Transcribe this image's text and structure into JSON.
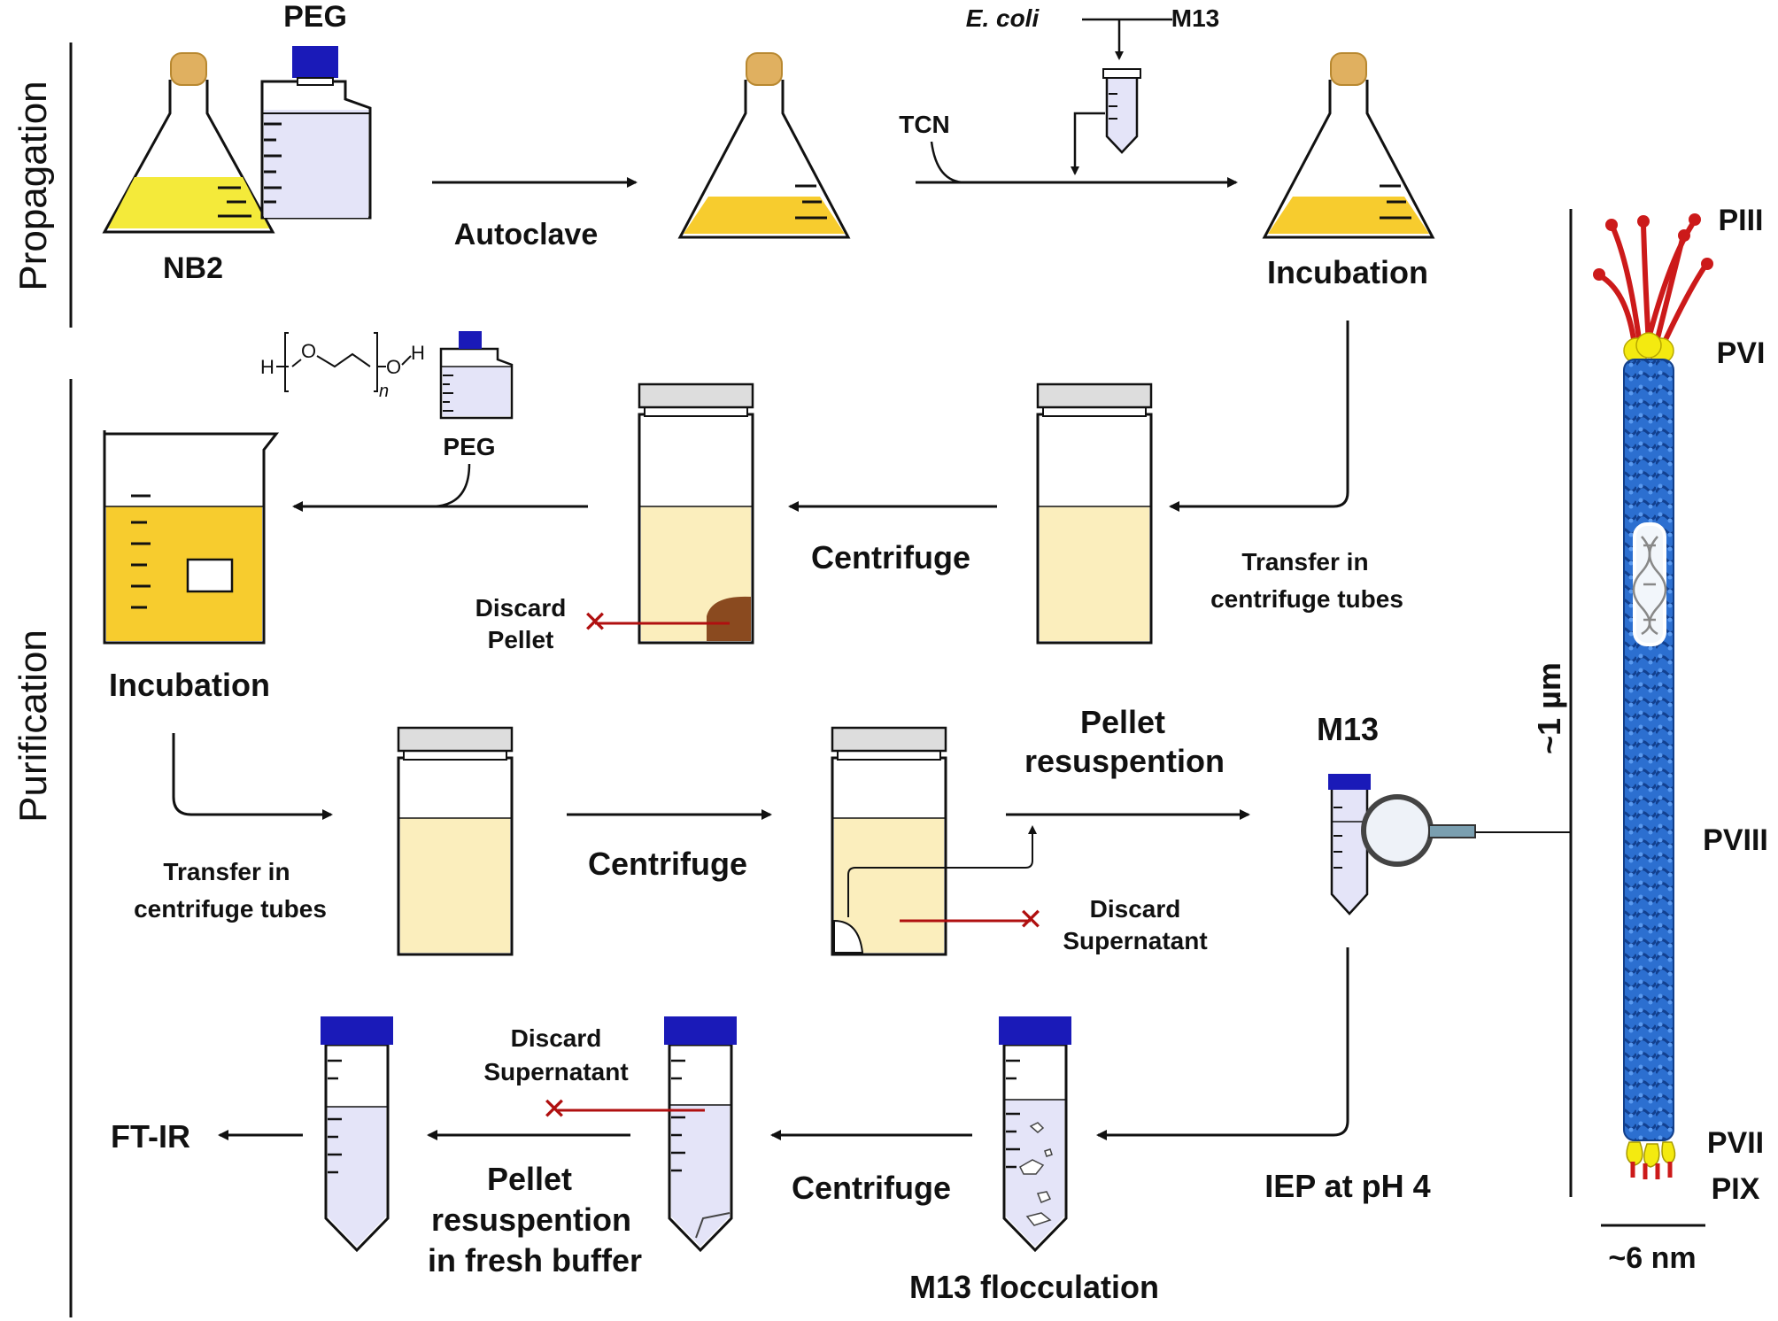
{
  "sections": {
    "propagation": "Propagation",
    "purification": "Purification"
  },
  "labels": {
    "nb2": "NB2",
    "peg_bottle": "PEG",
    "autoclave": "Autoclave",
    "ecoli": "E. coli",
    "m13_top": "M13",
    "tcn": "TCN",
    "incubation_top": "Incubation",
    "peg_small": "PEG",
    "peg_formula_h1": "H",
    "peg_formula_o1": "O",
    "peg_formula_o2": "O",
    "peg_formula_h2": "H",
    "peg_formula_n": "n",
    "centrifuge_1": "Centrifuge",
    "transfer_1a": "Transfer in",
    "transfer_1b": "centrifuge tubes",
    "discard_pellet_a": "Discard",
    "discard_pellet_b": "Pellet",
    "incubation_mid": "Incubation",
    "transfer_2a": "Transfer in",
    "transfer_2b": "centrifuge tubes",
    "centrifuge_2": "Centrifuge",
    "pellet_resusp_a": "Pellet",
    "pellet_resusp_b": "resuspention",
    "discard_super_1a": "Discard",
    "discard_super_1b": "Supernatant",
    "m13_mid": "M13",
    "iep": "IEP at pH 4",
    "m13_flocculation": "M13 flocculation",
    "centrifuge_3": "Centrifuge",
    "discard_super_2a": "Discard",
    "discard_super_2b": "Supernatant",
    "fresh_a": "Pellet",
    "fresh_b": "resuspention",
    "fresh_c": "in fresh buffer",
    "ftir": "FT-IR",
    "length": "~1 µm",
    "width": "~6 nm",
    "piii": "PIII",
    "pvi": "PVI",
    "pviii": "PVIII",
    "pvii": "PVII",
    "pix": "PIX"
  },
  "colors": {
    "medium_dark": "#f7cc2e",
    "medium_light": "#fbeebd",
    "peg_liquid": "#e4e4f8",
    "cap_blue": "#1a1ab8",
    "phage_blue": "#2a6fcf",
    "red": "#b01010",
    "yellow": "#f4ea10",
    "pellet_brown": "#8a4a1f",
    "cotton": "#e0b060"
  }
}
